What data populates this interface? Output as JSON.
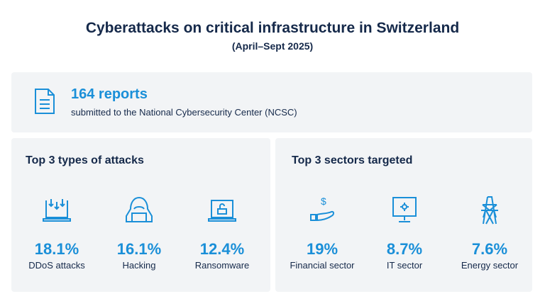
{
  "header": {
    "title": "Cyberattacks on critical infrastructure in Switzerland",
    "subtitle": "(April–Sept 2025)"
  },
  "reports": {
    "icon": "document-icon",
    "count": "164 reports",
    "description": "submitted to the National Cybersecurity Center (NCSC)"
  },
  "attacks": {
    "heading": "Top 3 types of attacks",
    "items": [
      {
        "icon": "laptop-download-icon",
        "value": "18.1%",
        "label": "DDoS attacks"
      },
      {
        "icon": "hooded-hacker-icon",
        "value": "16.1%",
        "label": "Hacking"
      },
      {
        "icon": "laptop-unlocked-icon",
        "value": "12.4%",
        "label": "Ransomware"
      }
    ]
  },
  "sectors": {
    "heading": "Top 3 sectors targeted",
    "items": [
      {
        "icon": "hand-dollar-icon",
        "value": "19%",
        "label": "Financial sector"
      },
      {
        "icon": "monitor-gear-icon",
        "value": "8.7%",
        "label": "IT sector"
      },
      {
        "icon": "power-pylon-icon",
        "value": "7.6%",
        "label": "Energy sector"
      }
    ]
  },
  "colors": {
    "navy": "#15294a",
    "accent": "#1a8fd8",
    "panel": "#f2f4f6"
  }
}
